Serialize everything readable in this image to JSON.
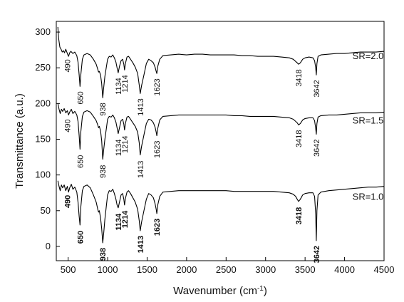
{
  "chart_data": {
    "type": "line",
    "xlabel": "Wavenumber (cm",
    "xlabel_superscript": "-1",
    "xlabel_suffix": ")",
    "ylabel": "Transmittance (a.u.)",
    "xlim": [
      350,
      4500
    ],
    "ylim": [
      -20,
      315
    ],
    "x_ticks": [
      500,
      1000,
      1500,
      2000,
      2500,
      3000,
      3500,
      4000,
      4500
    ],
    "y_ticks": [
      0,
      50,
      100,
      150,
      200,
      250,
      300
    ],
    "grid": false,
    "series": [
      {
        "name": "SR=2.0",
        "color": "#000000",
        "baseline": 270,
        "x": [
          370,
          380,
          395,
          410,
          425,
          440,
          455,
          470,
          490,
          505,
          520,
          535,
          560,
          585,
          610,
          625,
          640,
          650,
          660,
          680,
          700,
          740,
          780,
          820,
          855,
          875,
          885,
          895,
          910,
          925,
          938,
          950,
          965,
          985,
          1000,
          1020,
          1045,
          1065,
          1085,
          1105,
          1120,
          1134,
          1150,
          1170,
          1190,
          1205,
          1214,
          1225,
          1245,
          1265,
          1290,
          1320,
          1350,
          1380,
          1400,
          1413,
          1430,
          1460,
          1490,
          1520,
          1550,
          1580,
          1600,
          1615,
          1623,
          1635,
          1660,
          1700,
          1800,
          1900,
          2000,
          2100,
          2200,
          2300,
          2400,
          2500,
          2600,
          2700,
          2800,
          2900,
          3000,
          3100,
          3200,
          3300,
          3350,
          3380,
          3400,
          3418,
          3440,
          3470,
          3500,
          3550,
          3600,
          3620,
          3635,
          3642,
          3650,
          3665,
          3700,
          3800,
          3900,
          4000,
          4100,
          4200,
          4300,
          4400,
          4500
        ],
        "y": [
          307,
          291,
          279,
          276,
          272,
          274,
          271,
          276,
          270,
          266,
          271,
          273,
          270,
          272,
          267,
          258,
          240,
          224,
          240,
          262,
          268,
          270,
          268,
          262,
          255,
          248,
          244,
          245,
          240,
          228,
          208,
          222,
          238,
          252,
          262,
          266,
          265,
          268,
          264,
          258,
          250,
          243,
          252,
          260,
          262,
          255,
          247,
          256,
          265,
          266,
          262,
          257,
          251,
          242,
          226,
          214,
          225,
          240,
          256,
          262,
          260,
          257,
          251,
          245,
          242,
          252,
          262,
          267,
          268,
          269,
          268,
          269,
          269,
          268,
          268,
          268,
          268,
          267,
          267,
          266,
          266,
          266,
          265,
          264,
          262,
          259,
          257,
          255,
          257,
          262,
          264,
          265,
          264,
          260,
          250,
          240,
          256,
          266,
          268,
          269,
          270,
          270,
          271,
          272,
          272,
          272,
          273
        ]
      },
      {
        "name": "SR=1.5",
        "color": "#000000",
        "baseline": 190,
        "x": [
          370,
          385,
          400,
          415,
          430,
          450,
          470,
          490,
          505,
          520,
          540,
          560,
          585,
          610,
          625,
          640,
          650,
          660,
          680,
          700,
          740,
          780,
          820,
          855,
          875,
          885,
          895,
          910,
          925,
          938,
          950,
          965,
          985,
          1000,
          1020,
          1045,
          1065,
          1085,
          1105,
          1120,
          1134,
          1150,
          1170,
          1190,
          1205,
          1214,
          1225,
          1245,
          1265,
          1290,
          1320,
          1350,
          1380,
          1400,
          1413,
          1430,
          1460,
          1490,
          1520,
          1550,
          1580,
          1600,
          1615,
          1623,
          1635,
          1660,
          1700,
          1800,
          1900,
          2000,
          2100,
          2200,
          2300,
          2400,
          2500,
          2600,
          2700,
          2800,
          2900,
          3000,
          3100,
          3200,
          3300,
          3350,
          3380,
          3400,
          3418,
          3440,
          3470,
          3500,
          3550,
          3600,
          3620,
          3635,
          3642,
          3650,
          3665,
          3700,
          3800,
          3900,
          4000,
          4100,
          4200,
          4300,
          4400,
          4500
        ],
        "y": [
          200,
          192,
          186,
          192,
          189,
          193,
          187,
          190,
          184,
          188,
          192,
          186,
          189,
          184,
          175,
          155,
          136,
          160,
          182,
          188,
          190,
          188,
          182,
          176,
          170,
          166,
          168,
          162,
          148,
          122,
          135,
          150,
          166,
          178,
          182,
          181,
          184,
          180,
          174,
          166,
          158,
          166,
          176,
          178,
          171,
          163,
          172,
          181,
          182,
          178,
          173,
          168,
          160,
          145,
          128,
          140,
          156,
          172,
          178,
          177,
          173,
          167,
          160,
          155,
          165,
          177,
          182,
          183,
          184,
          184,
          184,
          184,
          184,
          184,
          184,
          183,
          183,
          182,
          182,
          182,
          182,
          181,
          180,
          178,
          175,
          173,
          170,
          172,
          177,
          179,
          180,
          180,
          176,
          165,
          157,
          172,
          181,
          183,
          184,
          184,
          185,
          186,
          187,
          187,
          187,
          188
        ]
      },
      {
        "name": "SR=1.0",
        "color": "#000000",
        "baseline": 85,
        "x": [
          370,
          385,
          400,
          415,
          430,
          450,
          470,
          490,
          505,
          520,
          540,
          560,
          585,
          610,
          625,
          640,
          650,
          660,
          680,
          700,
          740,
          780,
          820,
          855,
          875,
          885,
          895,
          910,
          925,
          938,
          950,
          965,
          985,
          1000,
          1020,
          1045,
          1065,
          1085,
          1105,
          1120,
          1134,
          1150,
          1170,
          1190,
          1205,
          1214,
          1225,
          1245,
          1265,
          1290,
          1320,
          1350,
          1380,
          1400,
          1413,
          1430,
          1460,
          1490,
          1520,
          1550,
          1580,
          1600,
          1615,
          1623,
          1635,
          1660,
          1700,
          1800,
          1900,
          2000,
          2100,
          2200,
          2300,
          2400,
          2500,
          2600,
          2700,
          2800,
          2900,
          3000,
          3100,
          3200,
          3300,
          3350,
          3380,
          3400,
          3418,
          3440,
          3470,
          3500,
          3550,
          3600,
          3620,
          3635,
          3642,
          3650,
          3665,
          3700,
          3800,
          3900,
          4000,
          4100,
          4200,
          4300,
          4400,
          4500
        ],
        "y": [
          92,
          84,
          78,
          86,
          82,
          86,
          78,
          84,
          76,
          82,
          87,
          80,
          83,
          76,
          62,
          42,
          30,
          55,
          78,
          84,
          86,
          82,
          72,
          62,
          52,
          48,
          50,
          40,
          25,
          5,
          18,
          38,
          58,
          72,
          78,
          77,
          80,
          74,
          66,
          58,
          54,
          62,
          72,
          74,
          66,
          58,
          67,
          76,
          78,
          74,
          68,
          62,
          52,
          36,
          22,
          34,
          50,
          66,
          74,
          72,
          68,
          60,
          52,
          46,
          58,
          70,
          76,
          77,
          78,
          78,
          78,
          78,
          78,
          78,
          78,
          77,
          77,
          77,
          77,
          77,
          77,
          76,
          75,
          73,
          70,
          66,
          63,
          66,
          72,
          74,
          75,
          75,
          70,
          45,
          8,
          50,
          72,
          76,
          78,
          79,
          80,
          81,
          82,
          83,
          83,
          84
        ]
      }
    ],
    "peak_labels": [
      {
        "series": 0,
        "bold": false,
        "items": [
          {
            "text": "490",
            "x": 490,
            "y": 262
          },
          {
            "text": "650",
            "x": 650,
            "y": 217
          },
          {
            "text": "938",
            "x": 938,
            "y": 201
          },
          {
            "text": "1134",
            "x": 1134,
            "y": 236
          },
          {
            "text": "1214",
            "x": 1214,
            "y": 240
          },
          {
            "text": "1413",
            "x": 1413,
            "y": 207
          },
          {
            "text": "1623",
            "x": 1623,
            "y": 235
          },
          {
            "text": "3418",
            "x": 3418,
            "y": 248
          },
          {
            "text": "3642",
            "x": 3642,
            "y": 233
          }
        ]
      },
      {
        "series": 1,
        "bold": false,
        "items": [
          {
            "text": "490",
            "x": 490,
            "y": 178
          },
          {
            "text": "650",
            "x": 650,
            "y": 128
          },
          {
            "text": "938",
            "x": 938,
            "y": 114
          },
          {
            "text": "1134",
            "x": 1134,
            "y": 150
          },
          {
            "text": "1214",
            "x": 1214,
            "y": 155
          },
          {
            "text": "1413",
            "x": 1413,
            "y": 120
          },
          {
            "text": "1623",
            "x": 1623,
            "y": 148
          },
          {
            "text": "3418",
            "x": 3418,
            "y": 163
          },
          {
            "text": "3642",
            "x": 3642,
            "y": 150
          }
        ]
      },
      {
        "series": 2,
        "bold": true,
        "items": [
          {
            "text": "490",
            "x": 490,
            "y": 72
          },
          {
            "text": "650",
            "x": 650,
            "y": 22
          },
          {
            "text": "938",
            "x": 938,
            "y": -2
          },
          {
            "text": "1134",
            "x": 1134,
            "y": 46
          },
          {
            "text": "1214",
            "x": 1214,
            "y": 50
          },
          {
            "text": "1413",
            "x": 1413,
            "y": 15
          },
          {
            "text": "1623",
            "x": 1623,
            "y": 39
          },
          {
            "text": "3418",
            "x": 3418,
            "y": 55
          },
          {
            "text": "3642",
            "x": 3642,
            "y": 1
          }
        ]
      }
    ],
    "series_labels": [
      {
        "text": "SR=2.0",
        "x": 4100,
        "y": 262
      },
      {
        "text": "SR=1.5",
        "x": 4100,
        "y": 172
      },
      {
        "text": "SR=1.0",
        "x": 4100,
        "y": 65
      }
    ]
  }
}
